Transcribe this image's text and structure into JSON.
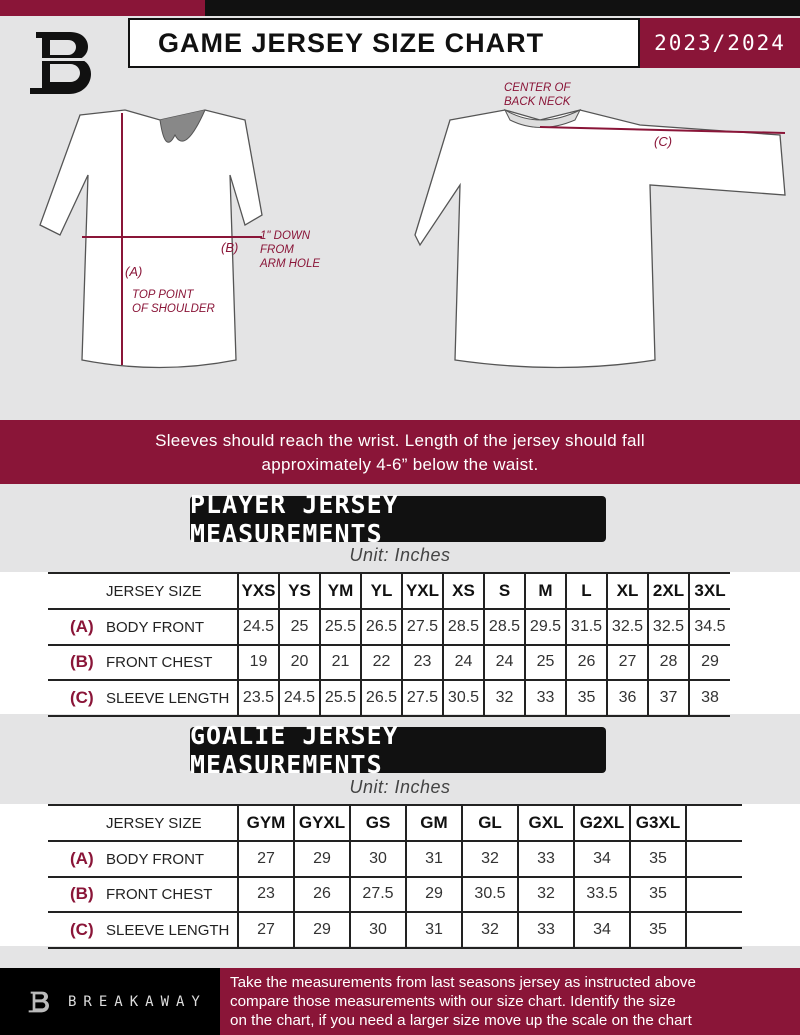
{
  "header": {
    "title": "GAME JERSEY SIZE CHART",
    "season": "2023/2024",
    "logo_letter": "B"
  },
  "diagram": {
    "notes": {
      "center_back_neck": [
        "CENTER OF",
        "BACK NECK"
      ],
      "down_from_arm": [
        "1\" DOWN",
        "FROM",
        "ARM HOLE"
      ],
      "top_shoulder": [
        "TOP POINT",
        "OF SHOULDER"
      ]
    },
    "labels": {
      "a": "(A)",
      "b": "(B)",
      "c": "(C)"
    }
  },
  "banner": {
    "line1": "Sleeves should reach the wrist. Length of the jersey should fall",
    "line2": "approximately 4-6” below the waist."
  },
  "player": {
    "heading": "PLAYER JERSEY MEASUREMENTS",
    "unit": "Unit: Inches",
    "size_label": "JERSEY SIZE",
    "sizes": [
      "YXS",
      "YS",
      "YM",
      "YL",
      "YXL",
      "XS",
      "S",
      "M",
      "L",
      "XL",
      "2XL",
      "3XL"
    ],
    "rows": [
      {
        "code": "(A)",
        "name": "BODY FRONT",
        "values": [
          "24.5",
          "25",
          "25.5",
          "26.5",
          "27.5",
          "28.5",
          "28.5",
          "29.5",
          "31.5",
          "32.5",
          "32.5",
          "34.5"
        ]
      },
      {
        "code": "(B)",
        "name": "FRONT CHEST",
        "values": [
          "19",
          "20",
          "21",
          "22",
          "23",
          "24",
          "24",
          "25",
          "26",
          "27",
          "28",
          "29"
        ]
      },
      {
        "code": "(C)",
        "name": "SLEEVE LENGTH",
        "values": [
          "23.5",
          "24.5",
          "25.5",
          "26.5",
          "27.5",
          "30.5",
          "32",
          "33",
          "35",
          "36",
          "37",
          "38"
        ]
      }
    ]
  },
  "goalie": {
    "heading": "GOALIE JERSEY MEASUREMENTS",
    "unit": "Unit: Inches",
    "size_label": "JERSEY SIZE",
    "sizes": [
      "GYM",
      "GYXL",
      "GS",
      "GM",
      "GL",
      "GXL",
      "G2XL",
      "G3XL",
      ""
    ],
    "rows": [
      {
        "code": "(A)",
        "name": "BODY FRONT",
        "values": [
          "27",
          "29",
          "30",
          "31",
          "32",
          "33",
          "34",
          "35",
          ""
        ]
      },
      {
        "code": "(B)",
        "name": "FRONT CHEST",
        "values": [
          "23",
          "26",
          "27.5",
          "29",
          "30.5",
          "32",
          "33.5",
          "35",
          ""
        ]
      },
      {
        "code": "(C)",
        "name": "SLEEVE LENGTH",
        "values": [
          "27",
          "29",
          "30",
          "31",
          "32",
          "33",
          "34",
          "35",
          ""
        ]
      }
    ]
  },
  "footer": {
    "brand": "BREAKAWAY",
    "text": [
      "Take the measurements from last seasons jersey as instructed above",
      "compare those measurements  with our size chart. Identify the size",
      "on the chart, if you need a larger size move up the scale on the chart"
    ]
  },
  "colors": {
    "accent": "#8a1538",
    "dark": "#111111",
    "background": "#e4e4e5"
  }
}
